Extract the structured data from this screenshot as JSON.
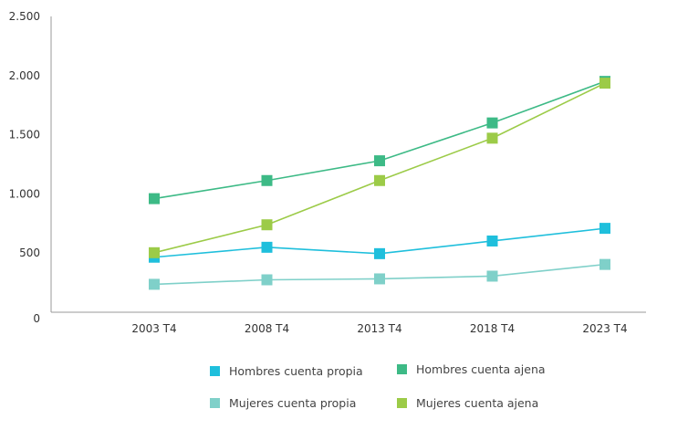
{
  "chart_data": {
    "type": "line",
    "title": "",
    "xlabel": "",
    "ylabel": "",
    "categories": [
      "2003 T4",
      "2008 T4",
      "2013 T4",
      "2018 T4",
      "2023 T4"
    ],
    "ylim": [
      0,
      2500
    ],
    "yticks": [
      0,
      500,
      1000,
      1500,
      2000,
      2500
    ],
    "ytick_labels": [
      "0",
      "500",
      "1.000",
      "1.500",
      "2.000",
      "2.500"
    ],
    "grid": false,
    "legend_position": "bottom",
    "series": [
      {
        "name": "Hombres cuenta propia",
        "color": "#1fbfdc",
        "values": [
          465,
          549,
          495,
          602,
          709
        ]
      },
      {
        "name": "Hombres cuenta ajena",
        "color": "#3dba86",
        "values": [
          960,
          1113,
          1280,
          1600,
          1951
        ]
      },
      {
        "name": "Mujeres cuenta propia",
        "color": "#7fd0c9",
        "values": [
          236,
          274,
          282,
          305,
          404
        ]
      },
      {
        "name": "Mujeres cuenta ajena",
        "color": "#9ccb48",
        "values": [
          503,
          739,
          1113,
          1471,
          1936
        ]
      }
    ]
  }
}
